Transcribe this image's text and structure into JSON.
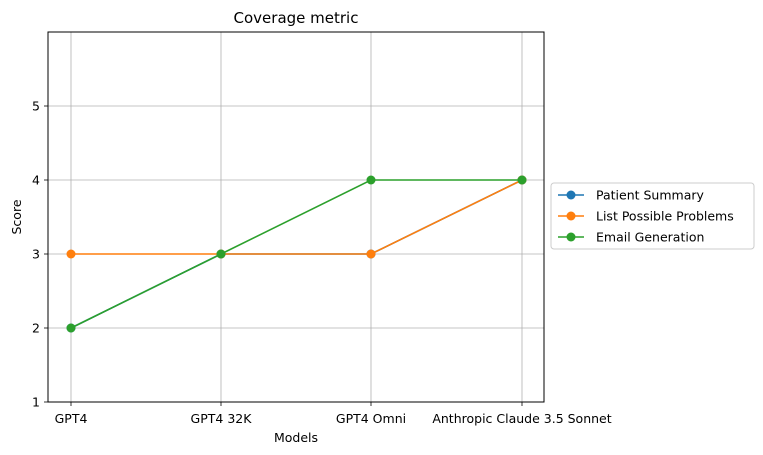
{
  "chart_data": {
    "type": "line",
    "title": "Coverage metric",
    "xlabel": "Models",
    "ylabel": "Score",
    "categories": [
      "GPT4",
      "GPT4 32K",
      "GPT4 Omni",
      "Anthropic Claude 3.5 Sonnet"
    ],
    "ylim": [
      1,
      6
    ],
    "yticks": [
      1,
      2,
      3,
      4,
      5
    ],
    "grid": true,
    "legend_position": "center-right outside",
    "series": [
      {
        "name": "Patient Summary",
        "color": "#1f77b4",
        "values": [
          2,
          3,
          3,
          4
        ]
      },
      {
        "name": "List Possible Problems",
        "color": "#ff7f0e",
        "values": [
          3,
          3,
          3,
          4
        ]
      },
      {
        "name": "Email Generation",
        "color": "#2ca02c",
        "values": [
          2,
          3,
          4,
          4
        ]
      }
    ]
  }
}
